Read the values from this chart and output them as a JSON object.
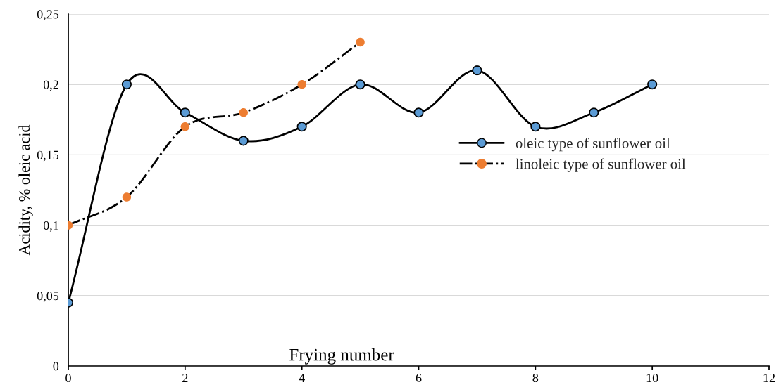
{
  "chart_data": {
    "type": "line",
    "xlabel": "Frying number",
    "ylabel": "Acidity, % oleic acid",
    "xlim": [
      0,
      12
    ],
    "xticks": [
      0,
      2,
      4,
      6,
      8,
      10,
      12
    ],
    "ylim": [
      0,
      0.25
    ],
    "yticks": [
      {
        "value": 0,
        "label": "0"
      },
      {
        "value": 0.05,
        "label": "0,05"
      },
      {
        "value": 0.1,
        "label": "0,1"
      },
      {
        "value": 0.15,
        "label": "0,15"
      },
      {
        "value": 0.2,
        "label": "0,2"
      },
      {
        "value": 0.25,
        "label": "0,25"
      }
    ],
    "grid": "y",
    "legend": "right",
    "marker": "circle",
    "series": [
      {
        "name": "oleic type of sunflower oil",
        "color": "#5b9bd5",
        "line_style": "solid",
        "x": [
          0,
          1,
          2,
          3,
          4,
          5,
          6,
          7,
          8,
          9,
          10
        ],
        "values": [
          0.045,
          0.2,
          0.18,
          0.16,
          0.17,
          0.2,
          0.18,
          0.21,
          0.17,
          0.18,
          0.2
        ]
      },
      {
        "name": "linoleic type of sunflower oil",
        "color": "#ed7d31",
        "line_style": "dashdot",
        "x": [
          0,
          1,
          2,
          3,
          4,
          5
        ],
        "values": [
          0.1,
          0.12,
          0.17,
          0.18,
          0.2,
          0.23
        ]
      }
    ]
  }
}
